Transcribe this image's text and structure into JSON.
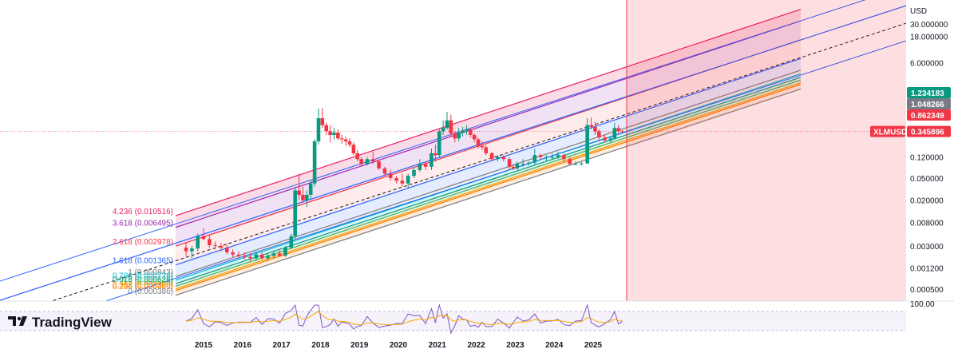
{
  "chart_data": {
    "type": "candlestick",
    "currency": "USD",
    "symbol": "XLMUSD",
    "last_price": "0.345896",
    "price_tags": [
      {
        "value": "1.234183",
        "color": "#089981"
      },
      {
        "value": "1.048266",
        "color": "#787b86"
      },
      {
        "value": "0.862349",
        "color": "#f23645"
      }
    ],
    "y_scale": "log",
    "y_ticks": [
      "30.000000",
      "18.000000",
      "6.000000",
      "0.120000",
      "0.050000",
      "0.020000",
      "0.008000",
      "0.003000",
      "0.001200",
      "0.000500"
    ],
    "x_ticks": [
      "2015",
      "2016",
      "2017",
      "2018",
      "2019",
      "2020",
      "2021",
      "2022",
      "2023",
      "2024",
      "2025"
    ],
    "fib_levels": [
      {
        "ratio": "4.236",
        "value": "0.010516",
        "text": "4.236 (0.010516)",
        "color": "#e91e63"
      },
      {
        "ratio": "3.618",
        "value": "0.006495",
        "text": "3.618 (0.006495)",
        "color": "#9c27b0"
      },
      {
        "ratio": "2.618",
        "value": "0.002978",
        "text": "2.618 (0.002978)",
        "color": "#f23645"
      },
      {
        "ratio": "1.618",
        "value": "0.001365",
        "text": "1.618 (0.001365)",
        "color": "#2962ff"
      },
      {
        "ratio": "1",
        "value": "0.000843",
        "text": "1 (0.000843)",
        "color": "#787b86"
      },
      {
        "ratio": "0.786",
        "value": "0.000726",
        "text": "0.786 (0.000726)",
        "color": "#00bcd4"
      },
      {
        "ratio": "0.618",
        "value": "0.000626",
        "text": "0.618 (0.000626)",
        "color": "#089981"
      },
      {
        "ratio": "0.5",
        "value": "0.000560",
        "text": "0.5 (0.000560)",
        "color": "#4caf50"
      },
      {
        "ratio": "0.382",
        "value": "0.000500",
        "text": "0.382 (0.000500)",
        "color": "#ff9800"
      },
      {
        "ratio": "0.236",
        "value": "0.000469",
        "text": "0.236 (0.000469)",
        "color": "#f57c00"
      },
      {
        "ratio": "0",
        "value": "0.000386",
        "text": "0 (0.000386)",
        "color": "#787b86"
      }
    ],
    "oscillator": {
      "top_label": "100.00"
    },
    "candles": [
      [
        2014.55,
        0.0028,
        0.0035,
        0.002,
        0.0024
      ],
      [
        2014.7,
        0.0024,
        0.003,
        0.0018,
        0.0027
      ],
      [
        2014.85,
        0.0027,
        0.005,
        0.0024,
        0.0045
      ],
      [
        2015.0,
        0.0045,
        0.0062,
        0.0038,
        0.004
      ],
      [
        2015.15,
        0.004,
        0.0048,
        0.0028,
        0.0031
      ],
      [
        2015.3,
        0.0031,
        0.0036,
        0.0026,
        0.003
      ],
      [
        2015.45,
        0.003,
        0.0034,
        0.0024,
        0.0028
      ],
      [
        2015.6,
        0.0028,
        0.0032,
        0.0021,
        0.0023
      ],
      [
        2015.75,
        0.0023,
        0.0026,
        0.0019,
        0.0021
      ],
      [
        2015.9,
        0.0021,
        0.0024,
        0.0018,
        0.002
      ],
      [
        2016.05,
        0.002,
        0.0023,
        0.0017,
        0.0019
      ],
      [
        2016.2,
        0.0019,
        0.0022,
        0.0016,
        0.0018
      ],
      [
        2016.35,
        0.0018,
        0.0024,
        0.0016,
        0.0021
      ],
      [
        2016.5,
        0.0021,
        0.0023,
        0.0017,
        0.0018
      ],
      [
        2016.65,
        0.0018,
        0.0022,
        0.0016,
        0.002
      ],
      [
        2016.8,
        0.002,
        0.0025,
        0.0018,
        0.0022
      ],
      [
        2016.95,
        0.0022,
        0.0026,
        0.0019,
        0.002
      ],
      [
        2017.1,
        0.002,
        0.003,
        0.0019,
        0.0028
      ],
      [
        2017.25,
        0.0028,
        0.005,
        0.0026,
        0.0045
      ],
      [
        2017.35,
        0.0045,
        0.035,
        0.004,
        0.03
      ],
      [
        2017.45,
        0.03,
        0.06,
        0.02,
        0.025
      ],
      [
        2017.55,
        0.025,
        0.035,
        0.018,
        0.02
      ],
      [
        2017.65,
        0.02,
        0.03,
        0.015,
        0.025
      ],
      [
        2017.75,
        0.025,
        0.045,
        0.02,
        0.04
      ],
      [
        2017.85,
        0.04,
        0.25,
        0.035,
        0.23
      ],
      [
        2017.95,
        0.23,
        0.9,
        0.2,
        0.6
      ],
      [
        2018.05,
        0.6,
        0.92,
        0.4,
        0.45
      ],
      [
        2018.15,
        0.45,
        0.5,
        0.3,
        0.35
      ],
      [
        2018.25,
        0.35,
        0.45,
        0.22,
        0.3
      ],
      [
        2018.35,
        0.3,
        0.4,
        0.25,
        0.33
      ],
      [
        2018.45,
        0.33,
        0.38,
        0.24,
        0.26
      ],
      [
        2018.55,
        0.26,
        0.3,
        0.21,
        0.25
      ],
      [
        2018.65,
        0.25,
        0.28,
        0.19,
        0.23
      ],
      [
        2018.75,
        0.23,
        0.26,
        0.18,
        0.2
      ],
      [
        2018.85,
        0.2,
        0.22,
        0.13,
        0.14
      ],
      [
        2018.95,
        0.14,
        0.16,
        0.1,
        0.11
      ],
      [
        2019.05,
        0.11,
        0.12,
        0.08,
        0.09
      ],
      [
        2019.2,
        0.09,
        0.12,
        0.085,
        0.11
      ],
      [
        2019.35,
        0.11,
        0.15,
        0.09,
        0.1
      ],
      [
        2019.5,
        0.1,
        0.11,
        0.07,
        0.075
      ],
      [
        2019.65,
        0.075,
        0.08,
        0.055,
        0.06
      ],
      [
        2019.8,
        0.06,
        0.07,
        0.045,
        0.05
      ],
      [
        2019.95,
        0.05,
        0.055,
        0.04,
        0.045
      ],
      [
        2020.1,
        0.045,
        0.06,
        0.035,
        0.04
      ],
      [
        2020.25,
        0.04,
        0.06,
        0.032,
        0.055
      ],
      [
        2020.4,
        0.055,
        0.08,
        0.05,
        0.07
      ],
      [
        2020.55,
        0.07,
        0.11,
        0.065,
        0.09
      ],
      [
        2020.7,
        0.09,
        0.1,
        0.07,
        0.08
      ],
      [
        2020.85,
        0.08,
        0.17,
        0.07,
        0.14
      ],
      [
        2020.95,
        0.14,
        0.2,
        0.1,
        0.13
      ],
      [
        2021.05,
        0.13,
        0.4,
        0.12,
        0.35
      ],
      [
        2021.15,
        0.35,
        0.55,
        0.3,
        0.4
      ],
      [
        2021.25,
        0.4,
        0.78,
        0.38,
        0.55
      ],
      [
        2021.35,
        0.55,
        0.7,
        0.28,
        0.32
      ],
      [
        2021.45,
        0.32,
        0.35,
        0.22,
        0.26
      ],
      [
        2021.55,
        0.26,
        0.4,
        0.23,
        0.33
      ],
      [
        2021.65,
        0.33,
        0.42,
        0.28,
        0.36
      ],
      [
        2021.75,
        0.36,
        0.45,
        0.3,
        0.38
      ],
      [
        2021.85,
        0.38,
        0.4,
        0.27,
        0.3
      ],
      [
        2021.95,
        0.3,
        0.32,
        0.22,
        0.25
      ],
      [
        2022.05,
        0.25,
        0.27,
        0.17,
        0.19
      ],
      [
        2022.15,
        0.19,
        0.23,
        0.16,
        0.18
      ],
      [
        2022.25,
        0.18,
        0.2,
        0.13,
        0.14
      ],
      [
        2022.4,
        0.14,
        0.15,
        0.1,
        0.11
      ],
      [
        2022.55,
        0.11,
        0.13,
        0.1,
        0.12
      ],
      [
        2022.7,
        0.12,
        0.13,
        0.1,
        0.11
      ],
      [
        2022.85,
        0.11,
        0.12,
        0.07,
        0.08
      ],
      [
        2022.95,
        0.08,
        0.09,
        0.07,
        0.075
      ],
      [
        2023.05,
        0.075,
        0.1,
        0.07,
        0.09
      ],
      [
        2023.2,
        0.09,
        0.11,
        0.08,
        0.09
      ],
      [
        2023.35,
        0.09,
        0.1,
        0.085,
        0.095
      ],
      [
        2023.5,
        0.095,
        0.17,
        0.085,
        0.13
      ],
      [
        2023.65,
        0.13,
        0.14,
        0.11,
        0.12
      ],
      [
        2023.8,
        0.12,
        0.13,
        0.1,
        0.12
      ],
      [
        2023.95,
        0.12,
        0.14,
        0.11,
        0.12
      ],
      [
        2024.1,
        0.12,
        0.15,
        0.11,
        0.13
      ],
      [
        2024.25,
        0.13,
        0.14,
        0.1,
        0.11
      ],
      [
        2024.4,
        0.11,
        0.12,
        0.085,
        0.09
      ],
      [
        2024.55,
        0.09,
        0.1,
        0.085,
        0.09
      ],
      [
        2024.7,
        0.09,
        0.1,
        0.085,
        0.092
      ],
      [
        2024.85,
        0.092,
        0.6,
        0.09,
        0.45
      ],
      [
        2024.95,
        0.45,
        0.62,
        0.38,
        0.42
      ],
      [
        2025.05,
        0.42,
        0.52,
        0.3,
        0.35
      ],
      [
        2025.15,
        0.35,
        0.38,
        0.24,
        0.27
      ],
      [
        2025.3,
        0.27,
        0.3,
        0.22,
        0.24
      ],
      [
        2025.45,
        0.24,
        0.28,
        0.22,
        0.26
      ],
      [
        2025.55,
        0.26,
        0.5,
        0.25,
        0.4
      ],
      [
        2025.65,
        0.4,
        0.45,
        0.32,
        0.35
      ],
      [
        2025.75,
        0.35,
        0.37,
        0.33,
        0.3459
      ]
    ]
  },
  "branding": {
    "logo_text": "TradingView"
  }
}
